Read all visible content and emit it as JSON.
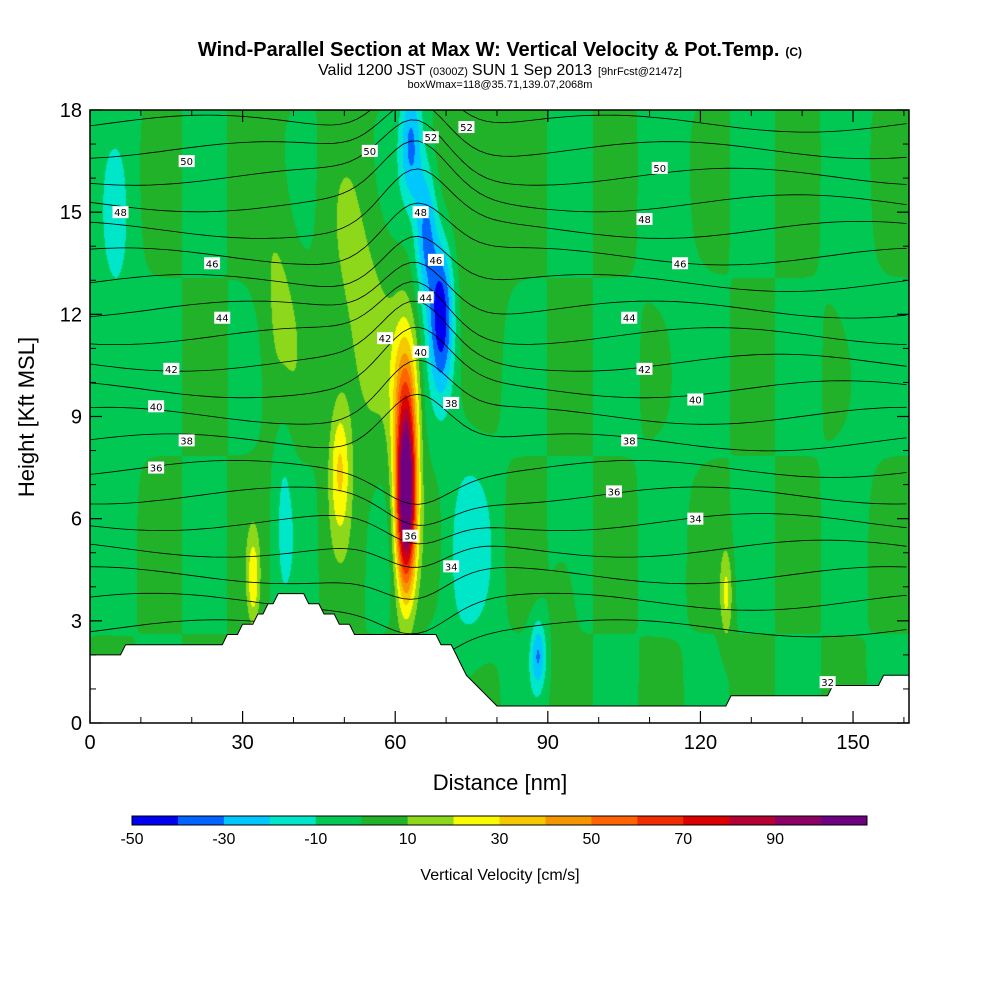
{
  "header": {
    "title": "Wind-Parallel Section at Max W: Vertical Velocity & Pot.Temp.",
    "title_tag": "(C)",
    "subtitle_a": "Valid 1200 JST",
    "subtitle_b": "(0300Z)",
    "subtitle_c": "SUN 1 Sep 2013",
    "subtitle_d": "[9hrFcst@2147z]",
    "subtitle2": "boxWmax=118@35.71,139.07,2068m"
  },
  "colorbar": {
    "label": "Vertical Velocity [cm/s]",
    "tick_labels": [
      "-50",
      "-30",
      "-10",
      "10",
      "30",
      "50",
      "70",
      "90"
    ],
    "colors": [
      "#0000f0",
      "#0064ff",
      "#00c8ff",
      "#00e6c8",
      "#00c853",
      "#22b22a",
      "#8ed81b",
      "#fafa00",
      "#f5c800",
      "#f59600",
      "#ff6400",
      "#f02d00",
      "#dc0000",
      "#b40032",
      "#8c0064",
      "#6e0082"
    ]
  },
  "chart_data": {
    "type": "heatmap",
    "title": "Wind-Parallel Section at Max W: Vertical Velocity & Pot.Temp.",
    "xlabel": "Distance [nm]",
    "ylabel": "Height [Kft MSL]",
    "xlim": [
      0,
      161
    ],
    "ylim": [
      0,
      18
    ],
    "x_ticks": [
      0,
      30,
      60,
      90,
      120,
      150
    ],
    "y_ticks": [
      0,
      3,
      6,
      9,
      12,
      15,
      18
    ],
    "x_tick_labels": [
      "0",
      "30",
      "60",
      "90",
      "120",
      "150"
    ],
    "y_tick_labels": [
      "0",
      "3",
      "6",
      "9",
      "12",
      "15",
      "18"
    ],
    "fill_variable": "Vertical Velocity [cm/s]",
    "contour_variable": "Potential Temperature (C)",
    "contour_interval": 1,
    "levels": [
      -50,
      -40,
      -30,
      -20,
      -10,
      0,
      10,
      20,
      30,
      40,
      50,
      60,
      70,
      80,
      90,
      100
    ],
    "background_value": 0,
    "features": [
      {
        "x": 62,
        "y": 6.5,
        "value": 118,
        "sx": 2.0,
        "sy": 2.6
      },
      {
        "x": 62,
        "y": 9.5,
        "value": 40,
        "sx": 2.6,
        "sy": 2.5
      },
      {
        "x": 69,
        "y": 12.0,
        "value": -45,
        "sx": 2.4,
        "sy": 2.2
      },
      {
        "x": 66,
        "y": 14.5,
        "value": -35,
        "sx": 2.2,
        "sy": 2.0
      },
      {
        "x": 63,
        "y": 17.0,
        "value": -32,
        "sx": 2.2,
        "sy": 1.8
      },
      {
        "x": 74,
        "y": 5.0,
        "value": -15,
        "sx": 5.0,
        "sy": 3.0
      },
      {
        "x": 88,
        "y": 2.0,
        "value": -30,
        "sx": 1.5,
        "sy": 1.0
      },
      {
        "x": 49,
        "y": 7.5,
        "value": 28,
        "sx": 2.0,
        "sy": 2.0
      },
      {
        "x": 32,
        "y": 4.2,
        "value": 25,
        "sx": 1.2,
        "sy": 1.3
      },
      {
        "x": 53,
        "y": 12.0,
        "value": 15,
        "sx": 6.0,
        "sy": 4.0
      },
      {
        "x": 125,
        "y": 3.8,
        "value": 22,
        "sx": 1.2,
        "sy": 1.3
      },
      {
        "x": 76,
        "y": 15.0,
        "value": 12,
        "sx": 5.0,
        "sy": 3.0
      },
      {
        "x": 37,
        "y": 12.5,
        "value": 12,
        "sx": 4.0,
        "sy": 4.0
      },
      {
        "x": 5,
        "y": 13.0,
        "value": -10,
        "sx": 4.0,
        "sy": 5.0
      },
      {
        "x": 38,
        "y": 6.5,
        "value": -11,
        "sx": 2.0,
        "sy": 3.5
      },
      {
        "x": 115,
        "y": 12.0,
        "value": -5,
        "sx": 5.0,
        "sy": 6.0
      },
      {
        "x": 150,
        "y": 12.0,
        "value": -6,
        "sx": 4.0,
        "sy": 5.0
      },
      {
        "x": 93,
        "y": 3.5,
        "value": 10,
        "sx": 2.0,
        "sy": 1.5
      }
    ],
    "terrain": [
      {
        "x": 0,
        "h": 2.0
      },
      {
        "x": 6,
        "h": 2.0
      },
      {
        "x": 7,
        "h": 2.3
      },
      {
        "x": 26,
        "h": 2.3
      },
      {
        "x": 27,
        "h": 2.6
      },
      {
        "x": 29,
        "h": 2.6
      },
      {
        "x": 30,
        "h": 2.9
      },
      {
        "x": 32,
        "h": 2.9
      },
      {
        "x": 33,
        "h": 3.2
      },
      {
        "x": 34,
        "h": 3.2
      },
      {
        "x": 35,
        "h": 3.5
      },
      {
        "x": 36,
        "h": 3.5
      },
      {
        "x": 37,
        "h": 3.8
      },
      {
        "x": 42,
        "h": 3.8
      },
      {
        "x": 43,
        "h": 3.5
      },
      {
        "x": 45,
        "h": 3.5
      },
      {
        "x": 46,
        "h": 3.2
      },
      {
        "x": 48,
        "h": 3.2
      },
      {
        "x": 49,
        "h": 2.9
      },
      {
        "x": 51,
        "h": 2.9
      },
      {
        "x": 52,
        "h": 2.6
      },
      {
        "x": 68,
        "h": 2.6
      },
      {
        "x": 69,
        "h": 2.3
      },
      {
        "x": 71,
        "h": 2.3
      },
      {
        "x": 72,
        "h": 2.0
      },
      {
        "x": 73,
        "h": 1.7
      },
      {
        "x": 74,
        "h": 1.4
      },
      {
        "x": 76,
        "h": 1.1
      },
      {
        "x": 78,
        "h": 0.8
      },
      {
        "x": 80,
        "h": 0.5
      },
      {
        "x": 125,
        "h": 0.5
      },
      {
        "x": 126,
        "h": 0.8
      },
      {
        "x": 145,
        "h": 0.8
      },
      {
        "x": 146,
        "h": 1.1
      },
      {
        "x": 155,
        "h": 1.1
      },
      {
        "x": 156,
        "h": 1.4
      },
      {
        "x": 161,
        "h": 1.4
      }
    ],
    "theta_labels": [
      {
        "x": 19,
        "y": 16.5,
        "text": "50"
      },
      {
        "x": 55,
        "y": 16.8,
        "text": "50"
      },
      {
        "x": 67,
        "y": 17.2,
        "text": "52"
      },
      {
        "x": 74,
        "y": 17.5,
        "text": "52"
      },
      {
        "x": 112,
        "y": 16.3,
        "text": "50"
      },
      {
        "x": 6,
        "y": 15.0,
        "text": "48"
      },
      {
        "x": 65,
        "y": 15.0,
        "text": "48"
      },
      {
        "x": 109,
        "y": 14.8,
        "text": "48"
      },
      {
        "x": 24,
        "y": 13.5,
        "text": "46"
      },
      {
        "x": 68,
        "y": 13.6,
        "text": "46"
      },
      {
        "x": 116,
        "y": 13.5,
        "text": "46"
      },
      {
        "x": 26,
        "y": 11.9,
        "text": "44"
      },
      {
        "x": 66,
        "y": 12.5,
        "text": "44"
      },
      {
        "x": 106,
        "y": 11.9,
        "text": "44"
      },
      {
        "x": 16,
        "y": 10.4,
        "text": "42"
      },
      {
        "x": 58,
        "y": 11.3,
        "text": "42"
      },
      {
        "x": 109,
        "y": 10.4,
        "text": "42"
      },
      {
        "x": 13,
        "y": 9.3,
        "text": "40"
      },
      {
        "x": 65,
        "y": 10.9,
        "text": "40"
      },
      {
        "x": 119,
        "y": 9.5,
        "text": "40"
      },
      {
        "x": 19,
        "y": 8.3,
        "text": "38"
      },
      {
        "x": 71,
        "y": 9.4,
        "text": "38"
      },
      {
        "x": 106,
        "y": 8.3,
        "text": "38"
      },
      {
        "x": 13,
        "y": 7.5,
        "text": "36"
      },
      {
        "x": 63,
        "y": 5.5,
        "text": "36"
      },
      {
        "x": 103,
        "y": 6.8,
        "text": "36"
      },
      {
        "x": 71,
        "y": 4.6,
        "text": "34"
      },
      {
        "x": 119,
        "y": 6.0,
        "text": "34"
      },
      {
        "x": 145,
        "y": 1.2,
        "text": "32"
      }
    ]
  }
}
